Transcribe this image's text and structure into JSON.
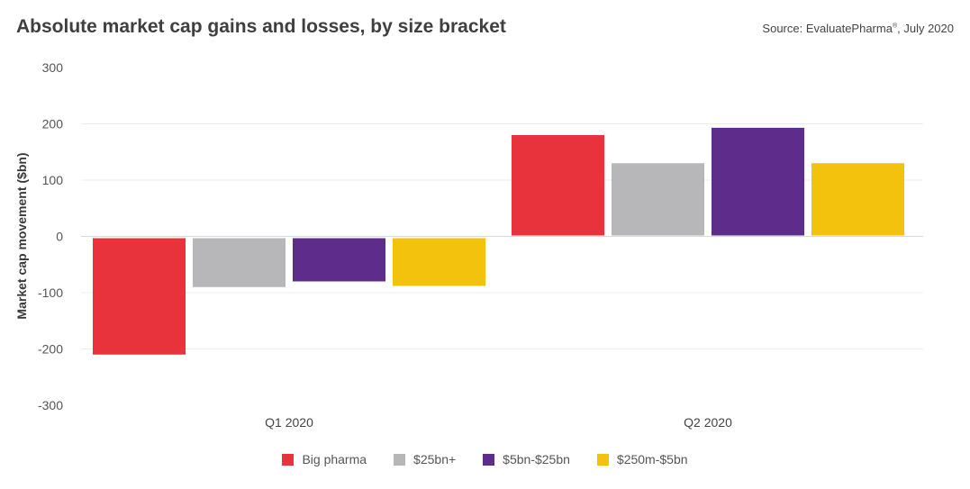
{
  "chart_data": {
    "type": "bar",
    "title": "Absolute market cap gains and losses, by size bracket",
    "source_prefix": "Source: EvaluatePharma",
    "source_mark": "®",
    "source_suffix": ", July 2020",
    "ylabel": "Market cap movement ($bn)",
    "xlabel": "",
    "ylim": [
      -300,
      300
    ],
    "yticks": [
      300,
      200,
      100,
      0,
      -100,
      -200,
      -300
    ],
    "categories": [
      "Q1 2020",
      "Q2 2020"
    ],
    "series": [
      {
        "name": "Big pharma",
        "color": "#e8323c",
        "values": [
          -210,
          180
        ]
      },
      {
        "name": "$25bn+",
        "color": "#b7b7b9",
        "values": [
          -90,
          130
        ]
      },
      {
        "name": "$5bn-$25bn",
        "color": "#5e2d8c",
        "values": [
          -80,
          193
        ]
      },
      {
        "name": "$250m-$5bn",
        "color": "#f2c20c",
        "values": [
          -88,
          130
        ]
      }
    ],
    "grid": true,
    "legend_position": "bottom"
  }
}
